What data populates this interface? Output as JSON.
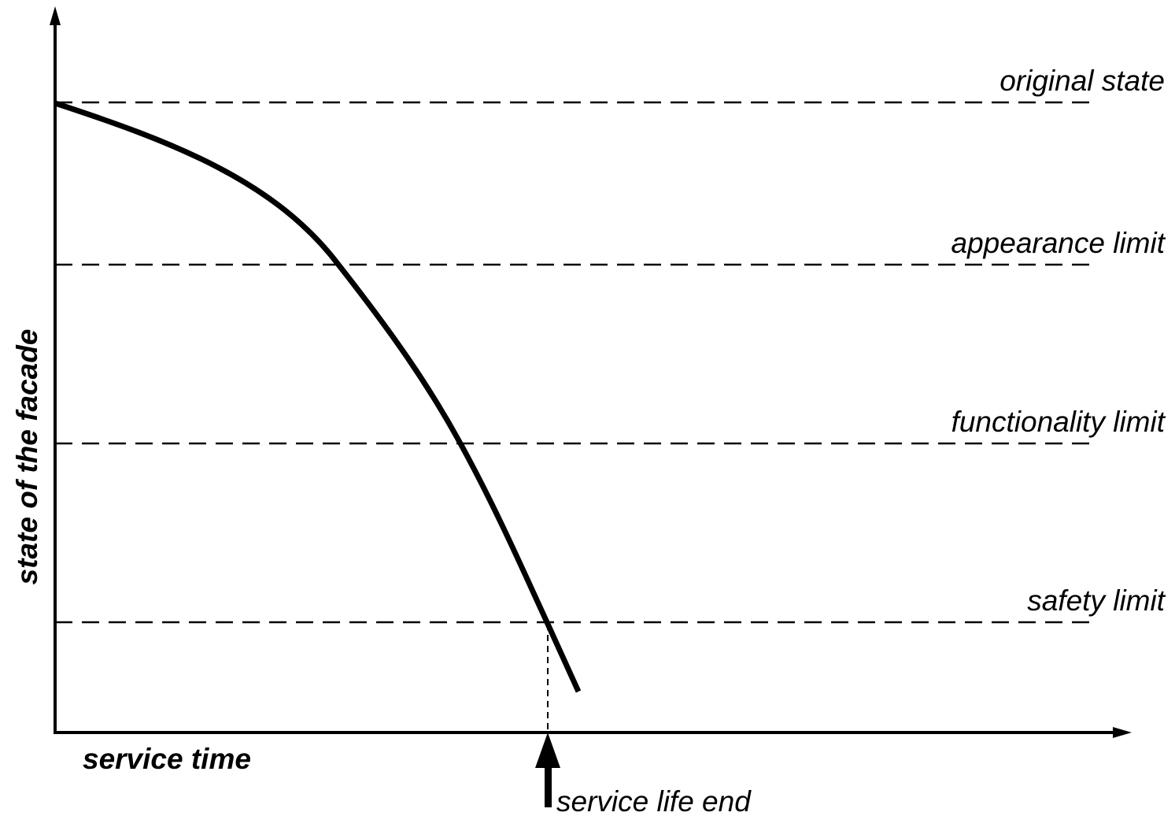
{
  "y_axis_label": "state of the facade",
  "x_axis_label": "service time",
  "limits": [
    "original state",
    "appearance limit",
    "functionality limit",
    "safety limit"
  ],
  "marker_label": "service life end"
}
